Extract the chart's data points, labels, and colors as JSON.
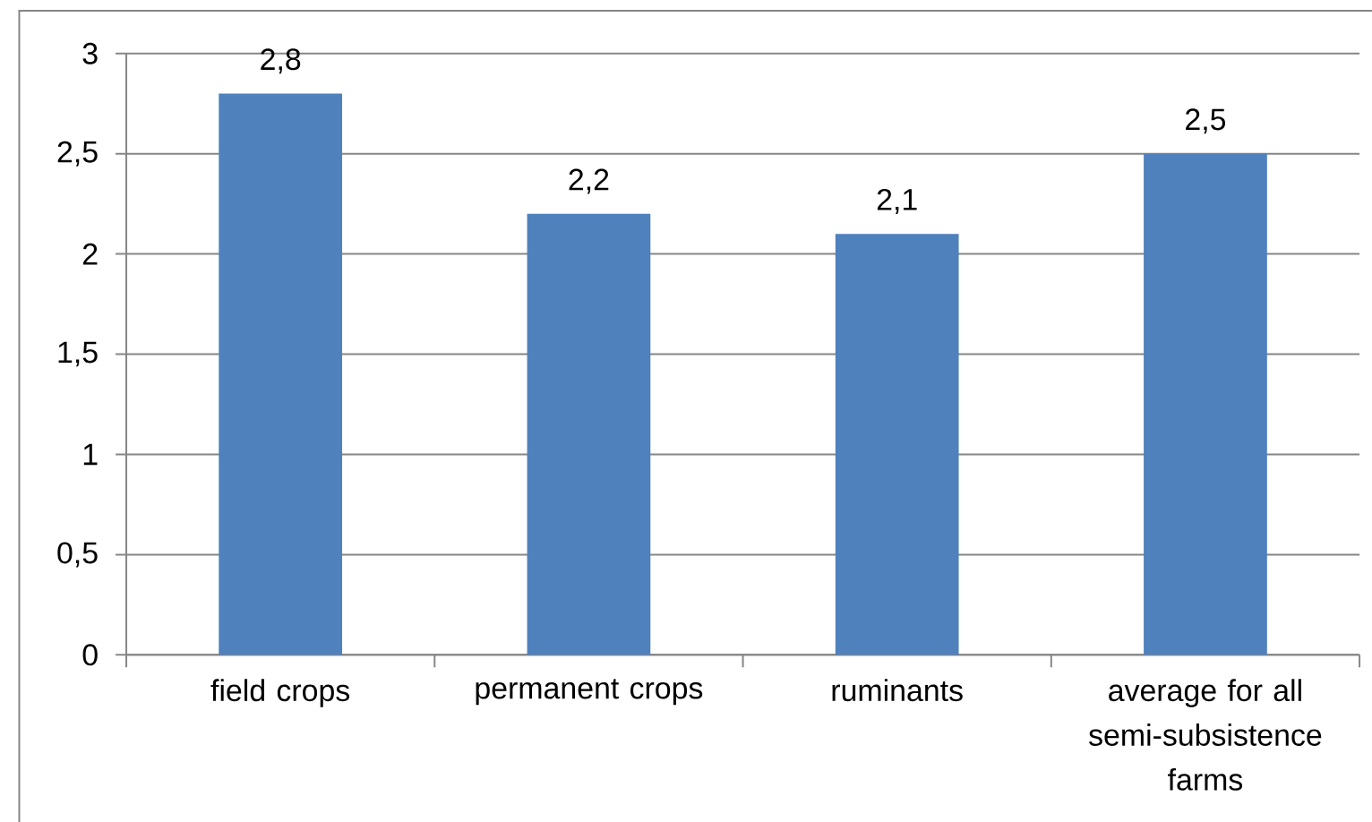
{
  "chart_data": {
    "type": "bar",
    "categories": [
      "field crops",
      "permanent crops",
      "ruminants",
      "average for all semi-subsistence farms"
    ],
    "values": [
      2.8,
      2.2,
      2.1,
      2.5
    ],
    "value_labels": [
      "2,8",
      "2,2",
      "2,1",
      "2,5"
    ],
    "color": "#4f81bd",
    "ylim": [
      0,
      3
    ],
    "yticks": [
      0,
      {
        "value": 0.5,
        "label": "0,5"
      },
      1,
      {
        "value": 1.5,
        "label": "1,5"
      },
      2,
      {
        "value": 2.5,
        "label": "2,5"
      },
      3
    ],
    "grid": "y"
  }
}
